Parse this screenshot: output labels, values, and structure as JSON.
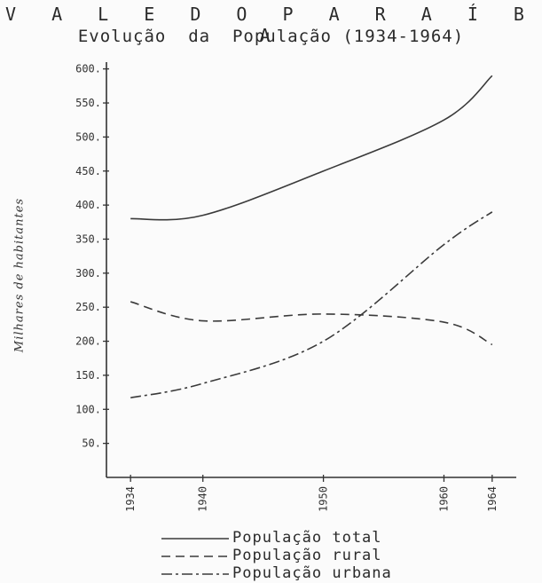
{
  "chart_data": {
    "type": "line",
    "title": "V A L E   D O   P A R A Í B A",
    "subtitle": "Evolução  da  População (1934-1964)",
    "ylabel": "Milhares de habitantes",
    "xlabel": "",
    "x": [
      1934,
      1940,
      1950,
      1960,
      1964
    ],
    "x_tick_labels": [
      "1934",
      "1940",
      "1950",
      "1960",
      "1964"
    ],
    "xlim": [
      1932,
      1966
    ],
    "ylim": [
      0,
      610
    ],
    "y_ticks": [
      50,
      100,
      150,
      200,
      250,
      300,
      350,
      400,
      450,
      500,
      550,
      600
    ],
    "y_tick_labels": [
      "50.",
      "100.",
      "150.",
      "200.",
      "250.",
      "300.",
      "350.",
      "400.",
      "450.",
      "500.",
      "550.",
      "600."
    ],
    "grid": false,
    "legend_position": "bottom",
    "series": [
      {
        "name": "População total",
        "style": "solid",
        "color": "#3a3a3a",
        "values": [
          380,
          385,
          450,
          525,
          590
        ]
      },
      {
        "name": "População rural",
        "style": "dashed",
        "color": "#3a3a3a",
        "values": [
          258,
          230,
          240,
          228,
          195
        ]
      },
      {
        "name": "População urbana",
        "style": "dashdot",
        "color": "#3a3a3a",
        "values": [
          117,
          138,
          200,
          342,
          390
        ]
      }
    ]
  }
}
